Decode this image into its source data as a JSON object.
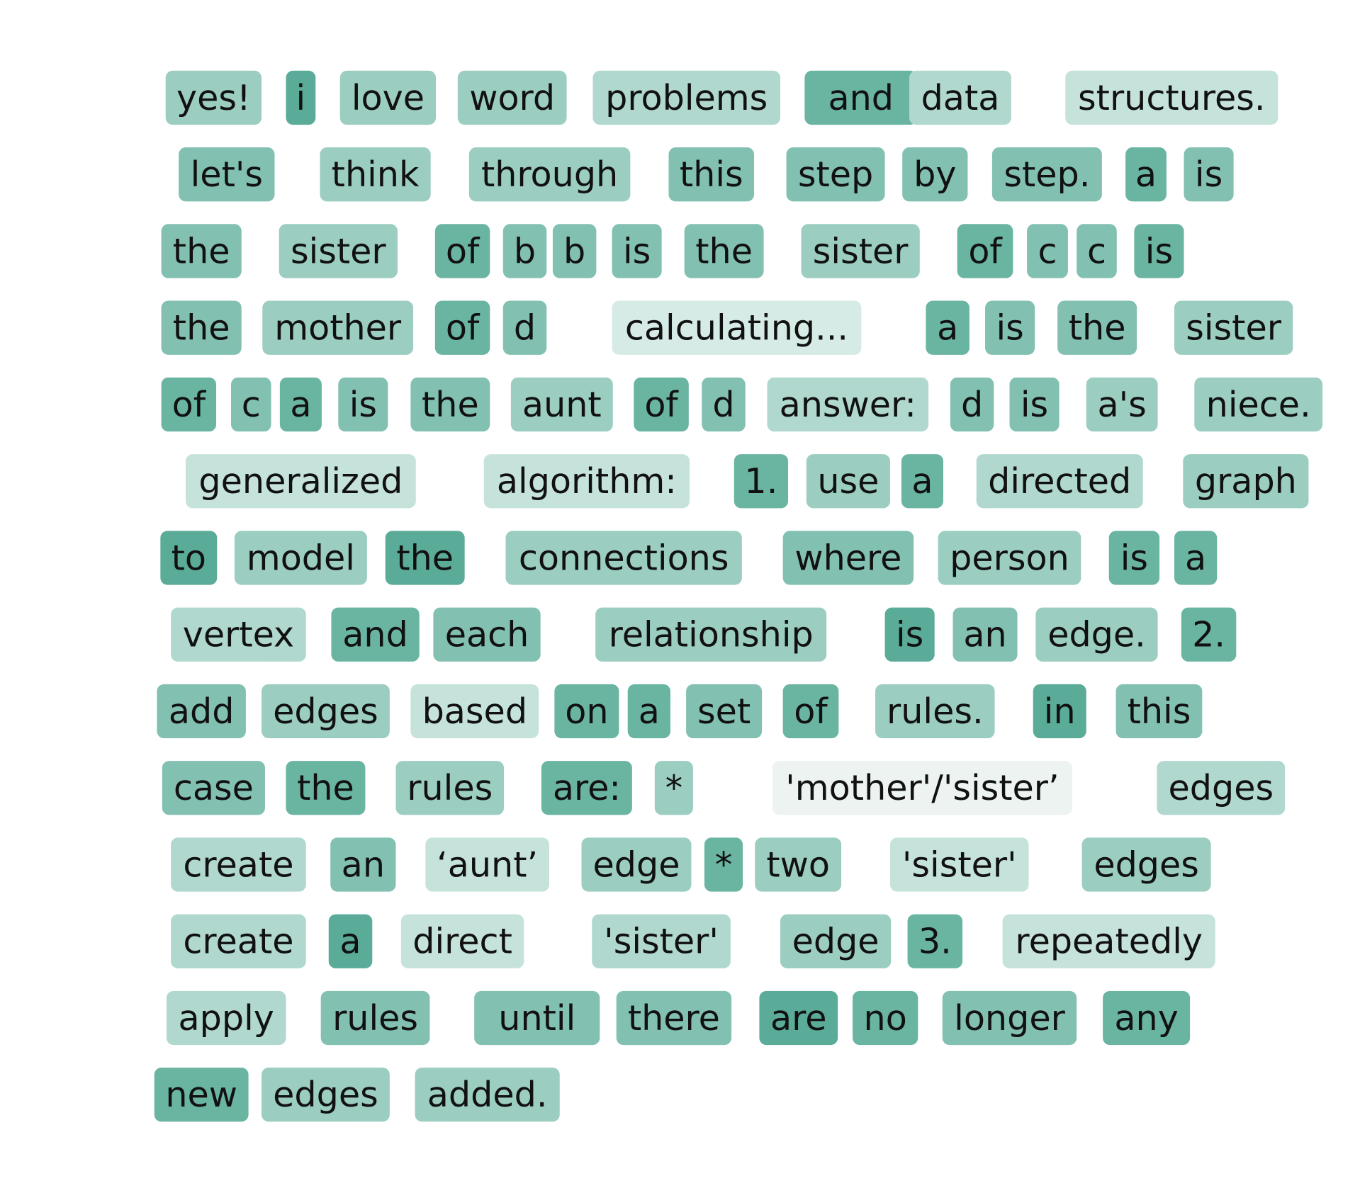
{
  "rows": [
    [
      {
        "text": "yes!",
        "color": "#9bcdc1"
      },
      {
        "text": "i",
        "color": "#5aab98"
      },
      {
        "text": "love",
        "color": "#9bcdc1"
      },
      {
        "text": "word",
        "color": "#9bcdc1"
      },
      {
        "text": "problems",
        "color": "#b0d8ce"
      },
      {
        "text": "and",
        "color": "#6ab4a2"
      },
      {
        "text": "data",
        "color": "#b0d8ce"
      },
      {
        "text": "structures.",
        "color": "#c6e3db"
      }
    ],
    [
      {
        "text": "let's",
        "color": "#82c0b1"
      },
      {
        "text": "think",
        "color": "#9bcdc1"
      },
      {
        "text": "through",
        "color": "#9bcdc1"
      },
      {
        "text": "this",
        "color": "#82c0b1"
      },
      {
        "text": "step",
        "color": "#82c0b1"
      },
      {
        "text": "by",
        "color": "#82c0b1"
      },
      {
        "text": "step.",
        "color": "#82c0b1"
      },
      {
        "text": "a",
        "color": "#6ab4a2"
      },
      {
        "text": "is",
        "color": "#82c0b1"
      }
    ],
    [
      {
        "text": "the",
        "color": "#82c0b1"
      },
      {
        "text": "sister",
        "color": "#9bcdc1"
      },
      {
        "text": "of",
        "color": "#6ab4a2"
      },
      {
        "text": "b",
        "color": "#82c0b1"
      },
      {
        "text": "b",
        "color": "#82c0b1"
      },
      {
        "text": "is",
        "color": "#82c0b1"
      },
      {
        "text": "the",
        "color": "#82c0b1"
      },
      {
        "text": "sister",
        "color": "#9bcdc1"
      },
      {
        "text": "of",
        "color": "#6ab4a2"
      },
      {
        "text": "c",
        "color": "#82c0b1"
      },
      {
        "text": "c",
        "color": "#82c0b1"
      },
      {
        "text": "is",
        "color": "#6ab4a2"
      }
    ],
    [
      {
        "text": "the",
        "color": "#82c0b1"
      },
      {
        "text": "mother",
        "color": "#9bcdc1"
      },
      {
        "text": "of",
        "color": "#6ab4a2"
      },
      {
        "text": "d",
        "color": "#82c0b1"
      },
      {
        "text": "calculating...",
        "color": "#d6ebe5"
      },
      {
        "text": "a",
        "color": "#6ab4a2"
      },
      {
        "text": "is",
        "color": "#82c0b1"
      },
      {
        "text": "the",
        "color": "#82c0b1"
      },
      {
        "text": "sister",
        "color": "#9bcdc1"
      }
    ],
    [
      {
        "text": "of",
        "color": "#6ab4a2"
      },
      {
        "text": "c",
        "color": "#82c0b1"
      },
      {
        "text": "a",
        "color": "#6ab4a2"
      },
      {
        "text": "is",
        "color": "#82c0b1"
      },
      {
        "text": "the",
        "color": "#82c0b1"
      },
      {
        "text": "aunt",
        "color": "#9bcdc1"
      },
      {
        "text": "of",
        "color": "#6ab4a2"
      },
      {
        "text": "d",
        "color": "#82c0b1"
      },
      {
        "text": "answer:",
        "color": "#b0d8ce"
      },
      {
        "text": "d",
        "color": "#82c0b1"
      },
      {
        "text": "is",
        "color": "#82c0b1"
      },
      {
        "text": "a's",
        "color": "#9bcdc1"
      },
      {
        "text": "niece.",
        "color": "#9bcdc1"
      }
    ],
    [
      {
        "text": "generalized",
        "color": "#c6e3db"
      },
      {
        "text": "algorithm:",
        "color": "#c6e3db"
      },
      {
        "text": "1.",
        "color": "#6ab4a2"
      },
      {
        "text": "use",
        "color": "#9bcdc1"
      },
      {
        "text": "a",
        "color": "#6ab4a2"
      },
      {
        "text": "directed",
        "color": "#b0d8ce"
      },
      {
        "text": "graph",
        "color": "#9bcdc1"
      }
    ],
    [
      {
        "text": "to",
        "color": "#5aab98"
      },
      {
        "text": "model",
        "color": "#9bcdc1"
      },
      {
        "text": "the",
        "color": "#5aab98"
      },
      {
        "text": "connections",
        "color": "#9bcdc1"
      },
      {
        "text": "where",
        "color": "#82c0b1"
      },
      {
        "text": "person",
        "color": "#9bcdc1"
      },
      {
        "text": "is",
        "color": "#6ab4a2"
      },
      {
        "text": "a",
        "color": "#6ab4a2"
      }
    ],
    [
      {
        "text": "vertex",
        "color": "#b0d8ce"
      },
      {
        "text": "and",
        "color": "#6ab4a2"
      },
      {
        "text": "each",
        "color": "#82c0b1"
      },
      {
        "text": "relationship",
        "color": "#9bcdc1"
      },
      {
        "text": "is",
        "color": "#5aab98"
      },
      {
        "text": "an",
        "color": "#82c0b1"
      },
      {
        "text": "edge.",
        "color": "#9bcdc1"
      },
      {
        "text": "2.",
        "color": "#6ab4a2"
      }
    ],
    [
      {
        "text": "add",
        "color": "#82c0b1"
      },
      {
        "text": "edges",
        "color": "#9bcdc1"
      },
      {
        "text": "based",
        "color": "#c6e3db"
      },
      {
        "text": "on",
        "color": "#6ab4a2"
      },
      {
        "text": "a",
        "color": "#6ab4a2"
      },
      {
        "text": "set",
        "color": "#82c0b1"
      },
      {
        "text": "of",
        "color": "#6ab4a2"
      },
      {
        "text": "rules.",
        "color": "#9bcdc1"
      },
      {
        "text": "in",
        "color": "#5aab98"
      },
      {
        "text": "this",
        "color": "#82c0b1"
      }
    ],
    [
      {
        "text": "case",
        "color": "#82c0b1"
      },
      {
        "text": "the",
        "color": "#6ab4a2"
      },
      {
        "text": "rules",
        "color": "#9bcdc1"
      },
      {
        "text": "are:",
        "color": "#6ab4a2"
      },
      {
        "text": "*",
        "color": "#9bcdc1"
      },
      {
        "text": "'mother'/'sister’",
        "color": "#ecf3f0"
      },
      {
        "text": "edges",
        "color": "#b0d8ce"
      }
    ],
    [
      {
        "text": "create",
        "color": "#b0d8ce"
      },
      {
        "text": "an",
        "color": "#82c0b1"
      },
      {
        "text": "‘aunt’",
        "color": "#c6e3db"
      },
      {
        "text": "edge",
        "color": "#9bcdc1"
      },
      {
        "text": "*",
        "color": "#6ab4a2"
      },
      {
        "text": "two",
        "color": "#9bcdc1"
      },
      {
        "text": "'sister'",
        "color": "#c6e3db"
      },
      {
        "text": "edges",
        "color": "#9bcdc1"
      }
    ],
    [
      {
        "text": "create",
        "color": "#b0d8ce"
      },
      {
        "text": "a",
        "color": "#5aab98"
      },
      {
        "text": "direct",
        "color": "#c6e3db"
      },
      {
        "text": "'sister'",
        "color": "#b0d8ce"
      },
      {
        "text": "edge",
        "color": "#9bcdc1"
      },
      {
        "text": "3.",
        "color": "#6ab4a2"
      },
      {
        "text": "repeatedly",
        "color": "#c6e3db"
      }
    ],
    [
      {
        "text": "apply",
        "color": "#b0d8ce"
      },
      {
        "text": "rules",
        "color": "#82c0b1"
      },
      {
        "text": "until",
        "color": "#82c0b1"
      },
      {
        "text": "there",
        "color": "#82c0b1"
      },
      {
        "text": "are",
        "color": "#5aab98"
      },
      {
        "text": "no",
        "color": "#6ab4a2"
      },
      {
        "text": "longer",
        "color": "#82c0b1"
      },
      {
        "text": "any",
        "color": "#6ab4a2"
      }
    ],
    [
      {
        "text": "new",
        "color": "#6ab4a2"
      },
      {
        "text": "edges",
        "color": "#9bcdc1"
      },
      {
        "text": "added.",
        "color": "#9bcdc1"
      }
    ]
  ]
}
